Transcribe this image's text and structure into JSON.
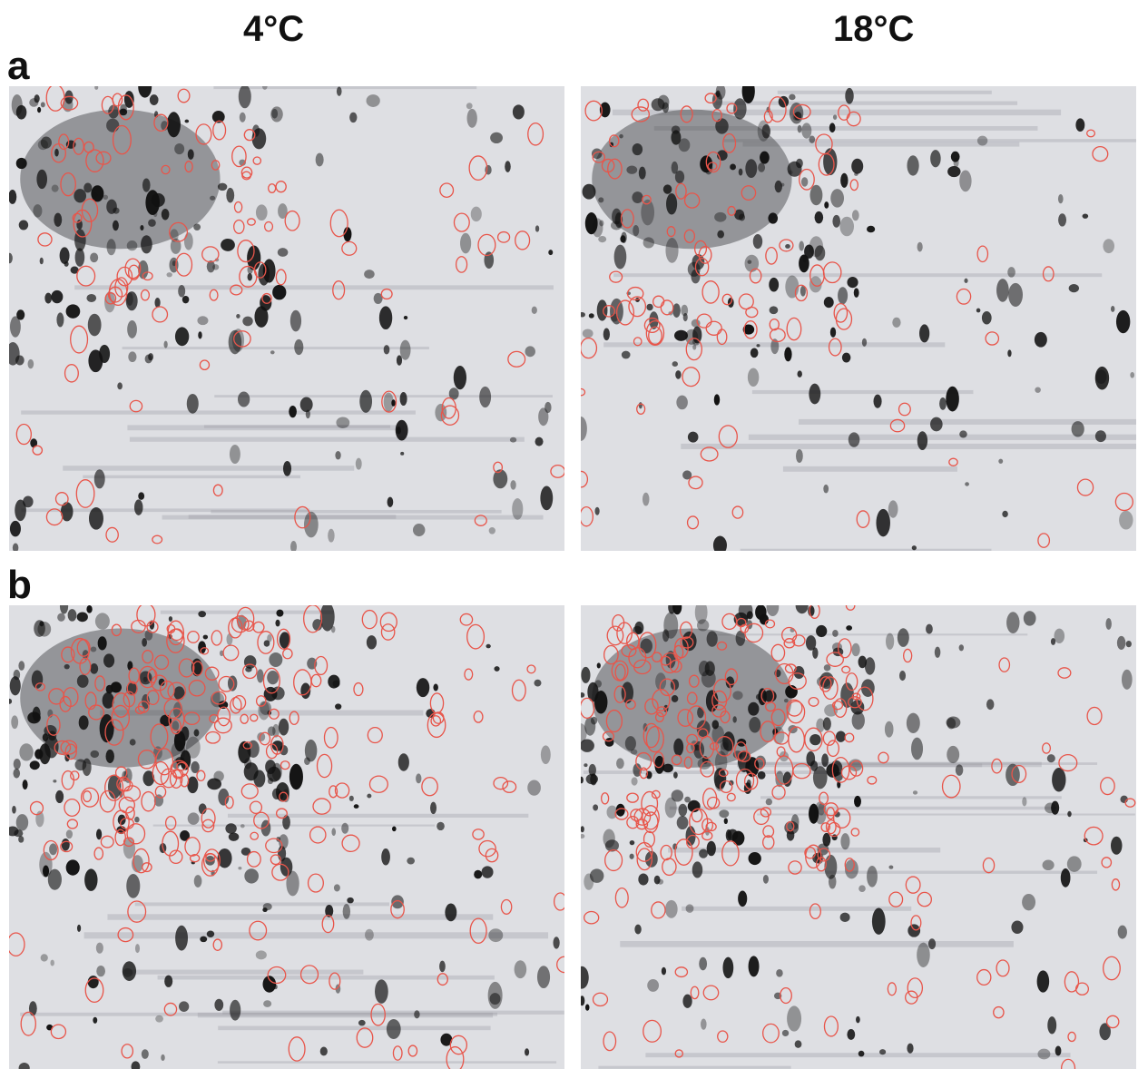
{
  "columns": [
    "4°C",
    "18°C"
  ],
  "panels": [
    {
      "label": "a"
    },
    {
      "label": "b"
    }
  ]
}
